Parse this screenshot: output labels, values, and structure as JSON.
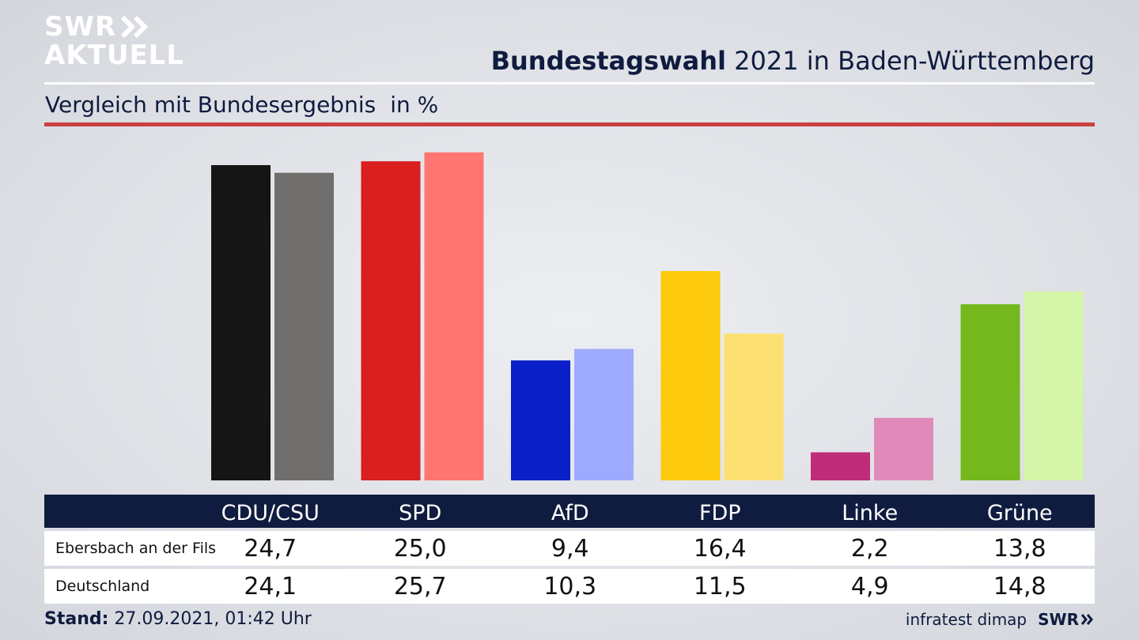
{
  "brand": {
    "line1": "SWR",
    "line2": "AKTUELL"
  },
  "header": {
    "title_bold": "Bundestagswahl",
    "title_rest": " 2021 in Baden-Württemberg"
  },
  "subtitle": {
    "text": "Vergleich mit Bundesergebnis",
    "unit": "in %"
  },
  "chart_data": {
    "type": "bar",
    "categories": [
      "CDU/CSU",
      "SPD",
      "AfD",
      "FDP",
      "Linke",
      "Grüne"
    ],
    "series": [
      {
        "name": "Ebersbach an der Fils",
        "values": [
          24.7,
          25.0,
          9.4,
          16.4,
          2.2,
          13.8
        ]
      },
      {
        "name": "Deutschland",
        "values": [
          24.1,
          25.7,
          10.3,
          11.5,
          4.9,
          14.8
        ]
      }
    ],
    "colors": {
      "Ebersbach an der Fils": [
        "#151515",
        "#d91f1f",
        "#0a1fc8",
        "#fdc90c",
        "#bf2c77",
        "#74b81e"
      ],
      "Deutschland": [
        "#706f6d",
        "#ff7570",
        "#9eaaff",
        "#fde072",
        "#e08ab9",
        "#d5f5a8"
      ]
    },
    "ylim": [
      0,
      26
    ],
    "grid": false,
    "legend": "none"
  },
  "table": {
    "header": [
      "CDU/CSU",
      "SPD",
      "AfD",
      "FDP",
      "Linke",
      "Grüne"
    ],
    "rows": [
      {
        "label": "Ebersbach an der Fils",
        "values": [
          "24,7",
          "25,0",
          "9,4",
          "16,4",
          "2,2",
          "13,8"
        ]
      },
      {
        "label": "Deutschland",
        "values": [
          "24,1",
          "25,7",
          "10,3",
          "11,5",
          "4,9",
          "14,8"
        ]
      }
    ]
  },
  "footer": {
    "stand_label": "Stand:",
    "stand_value": " 27.09.2021, 01:42 Uhr",
    "source": "infratest dimap",
    "brand": "SWR"
  }
}
